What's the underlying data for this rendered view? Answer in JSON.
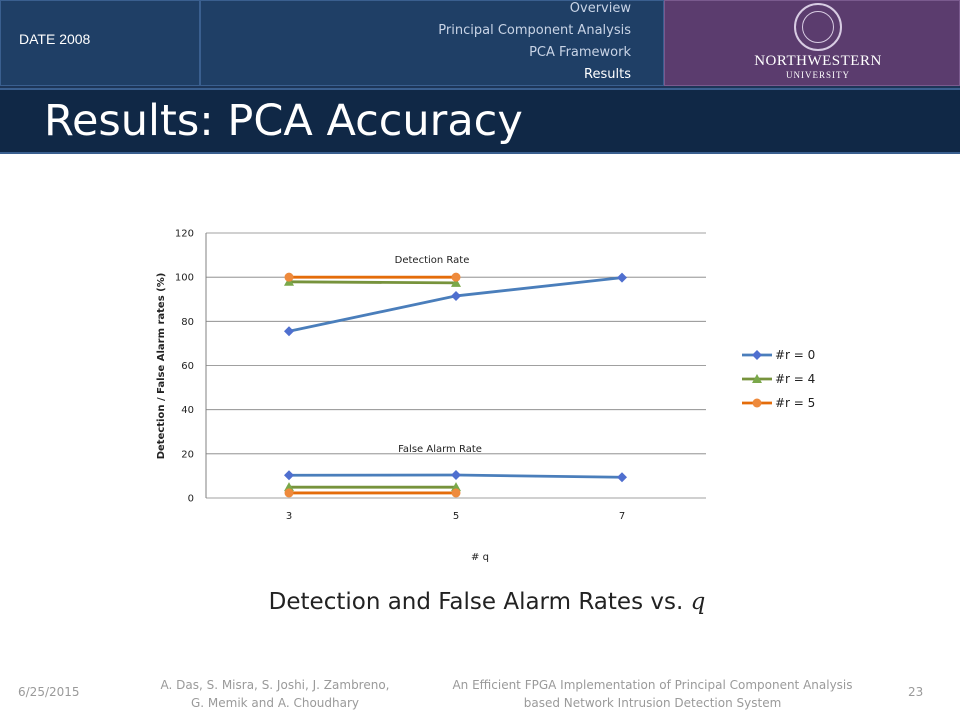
{
  "header": {
    "date_label": "DATE 2008",
    "nav": [
      "Overview",
      "Principal Component Analysis",
      "PCA Framework",
      "Results"
    ],
    "active_nav": "Results",
    "logo_name": "NORTHWESTERN",
    "logo_sub": "UNIVERSITY",
    "colors": {
      "header": "#1f3f66",
      "logo_bg": "#5b3c6e",
      "title_bar": "#102846"
    }
  },
  "slide_title": "Results: PCA Accuracy",
  "caption": {
    "text": "Detection and False Alarm Rates vs.",
    "var": "q"
  },
  "footer": {
    "date": "6/25/2015",
    "authors_line1": "A. Das, S. Misra, S. Joshi, J. Zambreno,",
    "authors_line2": "G. Memik and A. Choudhary",
    "paper_line1": "An Efficient FPGA Implementation of Principal Component Analysis",
    "paper_line2": "based Network Intrusion Detection System",
    "page": "23"
  },
  "chart_data": {
    "type": "line",
    "title": "",
    "xlabel": "# q",
    "ylabel": "Detection / False Alarm rates (%)",
    "x_ticks": [
      "3",
      "5",
      "7"
    ],
    "ylim": [
      0,
      120
    ],
    "y_ticks": [
      0,
      20,
      40,
      60,
      80,
      100,
      120
    ],
    "grid": true,
    "legend_position": "right",
    "annotations": [
      "Detection Rate",
      "False Alarm Rate"
    ],
    "series": [
      {
        "name": "#r = 0",
        "color": "#4a7ebb",
        "marker": "diamond",
        "marker_color": "#4f6fcf",
        "groups": [
          {
            "x": [
              3,
              5,
              7
            ],
            "y": [
              75.5,
              91.5,
              99.8
            ]
          },
          {
            "x": [
              3,
              5,
              7
            ],
            "y": [
              10.3,
              10.4,
              9.4
            ]
          }
        ]
      },
      {
        "name": "#r = 4",
        "color": "#77933c",
        "marker": "triangle",
        "marker_color": "#7aa84a",
        "groups": [
          {
            "x": [
              3,
              5
            ],
            "y": [
              97.9,
              97.4
            ]
          },
          {
            "x": [
              3,
              5
            ],
            "y": [
              4.9,
              4.9
            ]
          }
        ]
      },
      {
        "name": "#r = 5",
        "color": "#e46c0a",
        "marker": "circle",
        "marker_color": "#ee8a3c",
        "groups": [
          {
            "x": [
              3,
              5
            ],
            "y": [
              100,
              100
            ]
          },
          {
            "x": [
              3,
              5
            ],
            "y": [
              2.3,
              2.3
            ]
          }
        ]
      }
    ]
  }
}
